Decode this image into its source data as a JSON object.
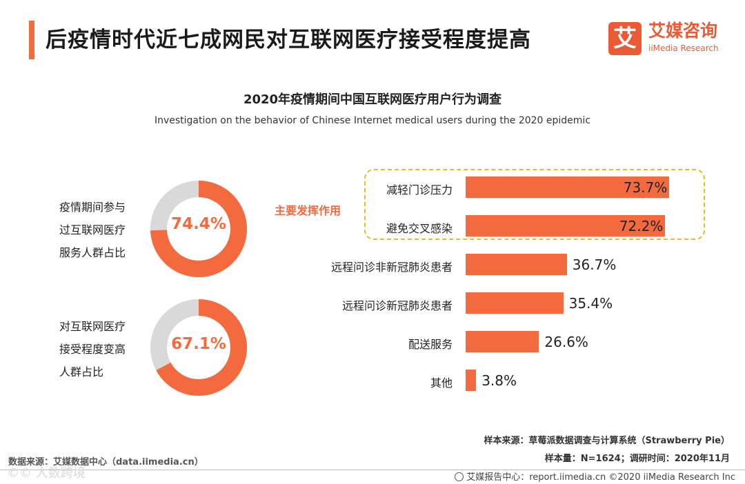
{
  "header": {
    "title": "后疫情时代近七成网民对互联网医疗接受程度提高",
    "logo_mark": "艾",
    "logo_cn": "艾媒咨询",
    "logo_en": "iiMedia Research"
  },
  "colors": {
    "accent": "#f26a3d",
    "donut_bg": "#d9d9d9",
    "highlight_border": "#e9b92a"
  },
  "chart_data": [
    {
      "type": "pie",
      "variant": "donut",
      "title": "疫情期间参与过互联网医疗服务人群占比",
      "label_lines": [
        "疫情期间参与",
        "过互联网医疗",
        "服务人群占比"
      ],
      "value": 74.4,
      "value_label": "74.4%"
    },
    {
      "type": "pie",
      "variant": "donut",
      "title": "对互联网医疗接受程度变高人群占比",
      "label_lines": [
        "对互联网医疗",
        "接受程度变高",
        "人群占比"
      ],
      "value": 67.1,
      "value_label": "67.1%"
    },
    {
      "type": "bar",
      "orientation": "horizontal",
      "title": "2020年疫情期间中国互联网医疗用户行为调查",
      "subtitle": "Investigation on the behavior of Chinese Internet medical users during the 2020 epidemic",
      "highlight_label": "主要发挥作用",
      "highlight_count": 2,
      "categories": [
        "减轻门诊压力",
        "避免交叉感染",
        "远程问诊非新冠肺炎患者",
        "远程问诊新冠肺炎患者",
        "配送服务",
        "其他"
      ],
      "values": [
        73.7,
        72.2,
        36.7,
        35.4,
        26.6,
        3.8
      ],
      "value_labels": [
        "73.7%",
        "72.2%",
        "36.7%",
        "35.4%",
        "26.6%",
        "3.8%"
      ],
      "unit": "%",
      "xlim": [
        0,
        100
      ]
    }
  ],
  "footer": {
    "sample_source": "样本来源：草莓派数据调查与计算系统（Strawberry Pie）",
    "sample_info": "样本量：N=1624；调研时间：2020年11月",
    "data_source": "数据来源：艾媒数据中心（data.iimedia.cn）",
    "watermark": "©© 人数跨境",
    "report_center": "艾媒报告中心：report.iimedia.cn  ©2020  iiMedia Research  Inc"
  }
}
